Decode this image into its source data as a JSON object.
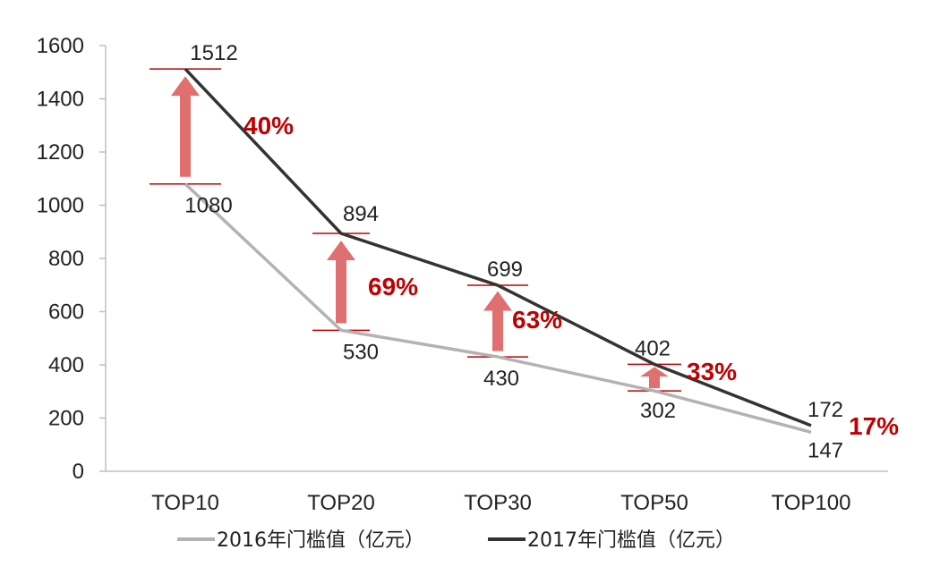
{
  "chart_data": {
    "type": "line",
    "categories": [
      "TOP10",
      "TOP20",
      "TOP30",
      "TOP50",
      "TOP100"
    ],
    "series": [
      {
        "name": "2016年门槛值（亿元）",
        "values": [
          1080,
          530,
          430,
          302,
          147
        ],
        "color": "#b3b3b3"
      },
      {
        "name": "2017年门槛值（亿元）",
        "values": [
          1512,
          894,
          699,
          402,
          172
        ],
        "color": "#333333"
      }
    ],
    "growth_labels": [
      "40%",
      "69%",
      "63%",
      "33%",
      "17%"
    ],
    "ylim": [
      0,
      1600
    ],
    "yticks": [
      0,
      200,
      400,
      600,
      800,
      1000,
      1200,
      1400,
      1600
    ],
    "legend_position": "bottom",
    "accent_color": "#c00000",
    "arrow_color": "#e07070",
    "grid": false
  }
}
